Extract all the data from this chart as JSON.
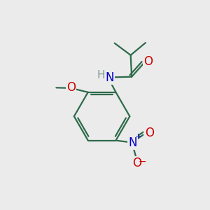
{
  "bg_color": "#ebebeb",
  "bond_color": "#2d6b4a",
  "bond_width": 1.6,
  "atom_colors": {
    "H": "#7a9a8a",
    "N": "#0000cc",
    "O": "#cc0000",
    "N_nitro": "#0000cc",
    "O_nitro": "#cc0000"
  },
  "font_size": 12,
  "figsize": [
    3.0,
    3.0
  ],
  "dpi": 100
}
